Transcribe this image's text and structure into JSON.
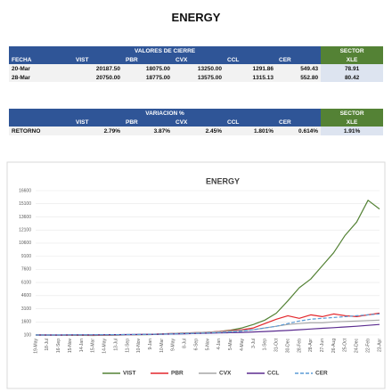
{
  "title": "ENERGY",
  "closing_table": {
    "group": "VALORES DE CIERRE",
    "sector": "SECTOR",
    "columns": [
      "FECHA",
      "VIST",
      "PBR",
      "CVX",
      "CCL",
      "CER",
      "XLE"
    ],
    "rows": [
      [
        "20-Mar",
        "20187.50",
        "18075.00",
        "13250.00",
        "1291.86",
        "549.43",
        "78.91"
      ],
      [
        "28-Mar",
        "20750.00",
        "18775.00",
        "13575.00",
        "1315.13",
        "552.80",
        "80.42"
      ]
    ]
  },
  "return_table": {
    "group": "VARIACION %",
    "sector": "SECTOR",
    "columns": [
      "VIST",
      "PBR",
      "CVX",
      "CCL",
      "CER",
      "XLE"
    ],
    "rows": [
      [
        "RETORNO",
        "2.79%",
        "3.87%",
        "2.45%",
        "1.801%",
        "0.614%",
        "1.91%"
      ]
    ]
  },
  "chart_data": {
    "type": "line",
    "title": "ENERGY",
    "categories": [
      "19-May",
      "18-Jul",
      "16-Sep",
      "15-Nov",
      "14-Jan",
      "15-Mar",
      "14-May",
      "13-Jul",
      "11-Sep",
      "10-Nov",
      "9-Jan",
      "10-Mar",
      "9-May",
      "8-Jul",
      "6-Sep",
      "5-Nov",
      "4-Jan",
      "5-Mar",
      "4-May",
      "3-Jul",
      "1-Sep",
      "31-Oct",
      "30-Dec",
      "28-Feb",
      "28-Apr",
      "27-Jun",
      "26-Aug",
      "25-Oct",
      "24-Dec",
      "22-Feb",
      "23-Apr"
    ],
    "series": [
      {
        "name": "VIST",
        "color": "#548235",
        "dash": false,
        "values": [
          100,
          90,
          80,
          70,
          60,
          50,
          70,
          90,
          110,
          130,
          150,
          200,
          250,
          300,
          350,
          400,
          500,
          650,
          900,
          1300,
          1800,
          2600,
          4000,
          5500,
          6500,
          8000,
          9500,
          11500,
          13000,
          15500,
          14500
        ]
      },
      {
        "name": "PBR",
        "color": "#e3262b",
        "dash": false,
        "values": [
          100,
          95,
          90,
          85,
          80,
          70,
          80,
          100,
          120,
          150,
          180,
          230,
          280,
          330,
          380,
          420,
          500,
          600,
          700,
          900,
          1400,
          1900,
          2300,
          2000,
          2400,
          2200,
          2500,
          2300,
          2200,
          2400,
          2600
        ]
      },
      {
        "name": "CVX",
        "color": "#a6a6a6",
        "dash": false,
        "values": [
          100,
          100,
          100,
          100,
          100,
          95,
          100,
          110,
          120,
          140,
          170,
          220,
          280,
          330,
          380,
          430,
          480,
          550,
          620,
          700,
          900,
          1100,
          1300,
          1400,
          1500,
          1500,
          1600,
          1650,
          1700,
          1750,
          1800
        ]
      },
      {
        "name": "CCL",
        "color": "#5b2c8f",
        "dash": false,
        "values": [
          100,
          102,
          105,
          110,
          115,
          120,
          130,
          140,
          150,
          160,
          170,
          190,
          210,
          240,
          270,
          300,
          330,
          360,
          400,
          450,
          500,
          560,
          620,
          700,
          780,
          860,
          940,
          1020,
          1100,
          1200,
          1300
        ]
      },
      {
        "name": "CER",
        "color": "#5b9bd5",
        "dash": true,
        "values": [
          100,
          102,
          105,
          110,
          115,
          120,
          130,
          140,
          150,
          165,
          180,
          200,
          220,
          250,
          290,
          330,
          380,
          450,
          550,
          700,
          900,
          1100,
          1400,
          1700,
          1900,
          2000,
          2100,
          2200,
          2300,
          2400,
          2500
        ]
      }
    ],
    "ylim": [
      100,
      16600
    ],
    "yticks": [
      100,
      1600,
      3100,
      4600,
      6100,
      7600,
      9100,
      10600,
      12100,
      13600,
      15100,
      16600
    ],
    "grid": true,
    "legend": "bottom"
  }
}
